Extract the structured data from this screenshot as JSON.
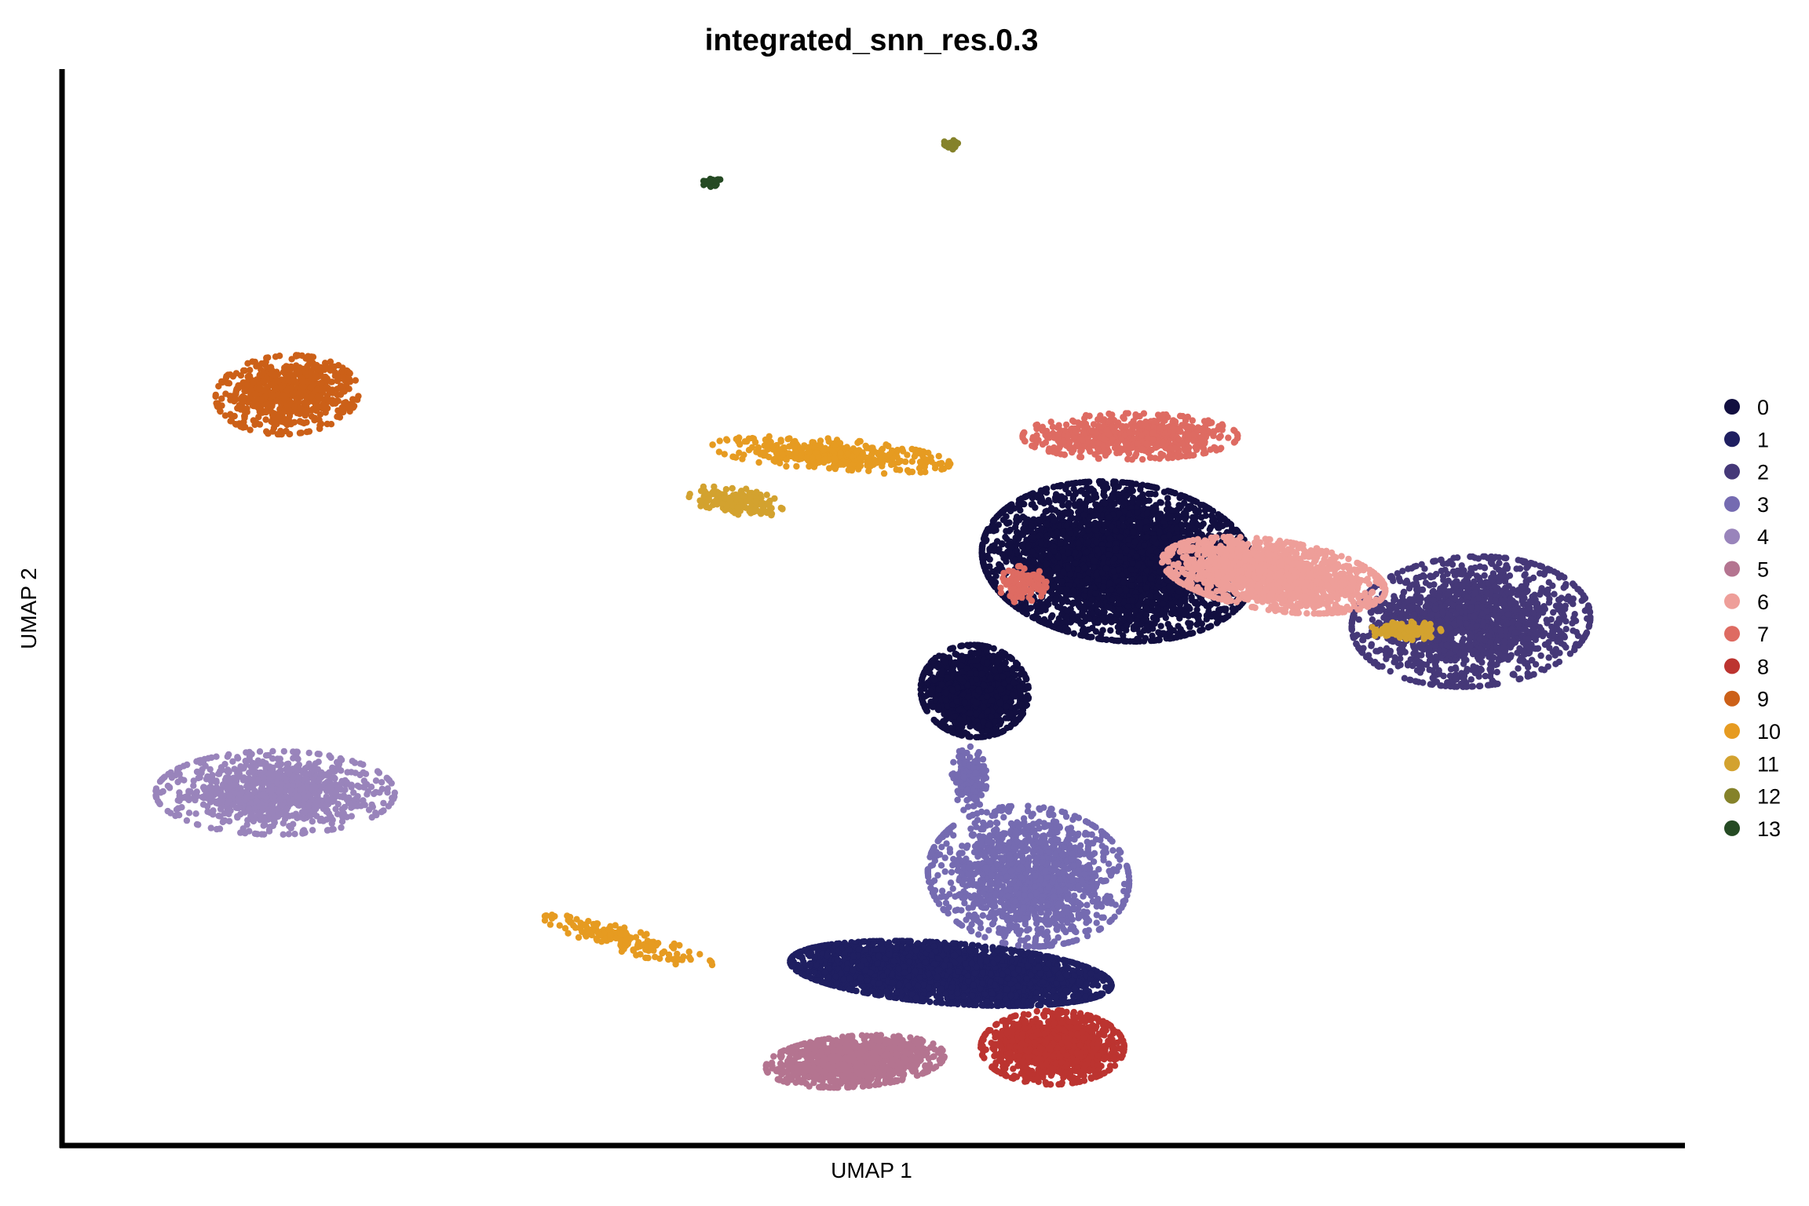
{
  "chart_data": {
    "type": "scatter",
    "title": "integrated_snn_res.0.3",
    "xlabel": "UMAP 1",
    "ylabel": "UMAP 2",
    "xlim": [
      -14,
      13
    ],
    "ylim": [
      -10,
      13
    ],
    "grid": false,
    "legend_position": "right",
    "series": [
      {
        "name": "0",
        "color": "#120F40",
        "n": 5200,
        "blobs": [
          [
            3.6,
            2.5,
            2.3,
            1.7,
            -0.2,
            1.0
          ],
          [
            1.2,
            -0.3,
            0.9,
            1.0,
            0.2,
            0.35
          ]
        ]
      },
      {
        "name": "1",
        "color": "#1F1F61",
        "n": 3600,
        "blobs": [
          [
            0.8,
            -6.4,
            2.7,
            0.65,
            -0.1,
            1.0
          ]
        ]
      },
      {
        "name": "2",
        "color": "#453878",
        "n": 1700,
        "blobs": [
          [
            9.5,
            1.2,
            2.0,
            1.4,
            0.1,
            1.0
          ]
        ]
      },
      {
        "name": "3",
        "color": "#756BB1",
        "n": 1700,
        "blobs": [
          [
            2.1,
            -4.3,
            1.7,
            1.5,
            -0.3,
            1.0
          ],
          [
            1.1,
            -2.2,
            0.3,
            0.7,
            0.0,
            0.12
          ]
        ]
      },
      {
        "name": "4",
        "color": "#9984BB",
        "n": 950,
        "blobs": [
          [
            -10.5,
            -2.5,
            2.0,
            0.9,
            0.0,
            1.0
          ]
        ]
      },
      {
        "name": "5",
        "color": "#B47490",
        "n": 1100,
        "blobs": [
          [
            -0.8,
            -8.3,
            1.5,
            0.55,
            0.1,
            1.0
          ]
        ]
      },
      {
        "name": "6",
        "color": "#EE9E99",
        "n": 1500,
        "blobs": [
          [
            6.2,
            2.2,
            1.9,
            0.75,
            -0.2,
            1.0
          ]
        ]
      },
      {
        "name": "7",
        "color": "#DE6B62",
        "n": 800,
        "blobs": [
          [
            3.8,
            5.2,
            1.8,
            0.5,
            0.0,
            0.85
          ],
          [
            2.0,
            2.0,
            0.4,
            0.4,
            0.0,
            0.15
          ]
        ]
      },
      {
        "name": "8",
        "color": "#BC3430",
        "n": 1300,
        "blobs": [
          [
            2.5,
            -8.0,
            1.2,
            0.8,
            0.0,
            1.0
          ]
        ]
      },
      {
        "name": "9",
        "color": "#CC6018",
        "n": 700,
        "blobs": [
          [
            -10.3,
            6.1,
            1.2,
            0.85,
            0.1,
            1.0
          ]
        ]
      },
      {
        "name": "10",
        "color": "#E69B21",
        "n": 550,
        "blobs": [
          [
            -1.2,
            4.8,
            2.0,
            0.35,
            -0.1,
            0.7
          ],
          [
            -4.6,
            -5.7,
            1.5,
            0.25,
            -0.35,
            0.3
          ]
        ]
      },
      {
        "name": "11",
        "color": "#D3A22F",
        "n": 300,
        "blobs": [
          [
            -2.8,
            3.8,
            0.8,
            0.3,
            -0.2,
            0.55
          ],
          [
            8.4,
            1.0,
            0.6,
            0.2,
            0.0,
            0.45
          ]
        ]
      },
      {
        "name": "12",
        "color": "#85822A",
        "n": 40,
        "blobs": [
          [
            0.8,
            11.5,
            0.15,
            0.1,
            0.0,
            1.0
          ]
        ]
      },
      {
        "name": "13",
        "color": "#254A23",
        "n": 30,
        "blobs": [
          [
            -3.2,
            10.7,
            0.15,
            0.1,
            0.3,
            1.0
          ]
        ]
      }
    ]
  }
}
